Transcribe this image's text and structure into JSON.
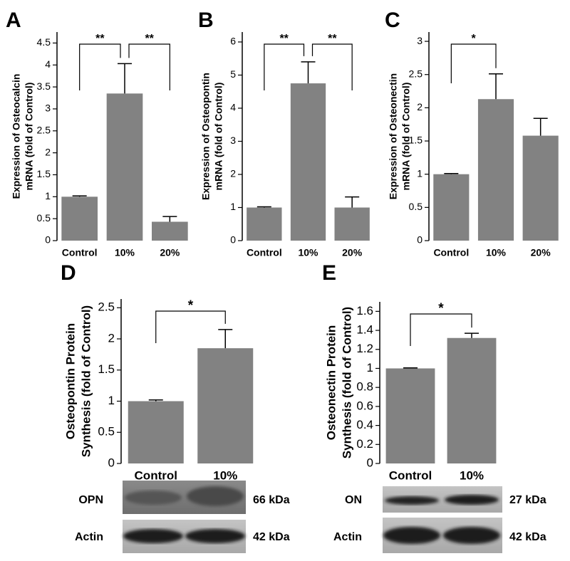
{
  "chart_data": [
    {
      "type": "bar",
      "panel": "A",
      "ylabel": [
        "Expression of Osteocalcin",
        "mRNA (fold of Control)"
      ],
      "categories": [
        "Control",
        "10%",
        "20%"
      ],
      "values": [
        1,
        3.35,
        0.43
      ],
      "errors": [
        0.02,
        0.68,
        0.12
      ],
      "color": "#828282",
      "ylim": [
        0,
        4.75
      ],
      "yticks": [
        0,
        0.5,
        1,
        1.5,
        2,
        2.5,
        3,
        3.5,
        4,
        4.5
      ],
      "annotations": [
        {
          "text": "**",
          "categories": [
            "Control",
            "10%"
          ]
        },
        {
          "text": "**",
          "categories": [
            "10%",
            "20%"
          ]
        }
      ]
    },
    {
      "type": "bar",
      "panel": "B",
      "ylabel": [
        "Expression of Osteopontin",
        "mRNA (fold of Control)"
      ],
      "categories": [
        "Control",
        "10%",
        "20%"
      ],
      "values": [
        1,
        4.75,
        1
      ],
      "errors": [
        0.02,
        0.65,
        0.32
      ],
      "color": "#828282",
      "ylim": [
        0,
        6.3
      ],
      "yticks": [
        0,
        1,
        2,
        3,
        4,
        5,
        6
      ],
      "annotations": [
        {
          "text": "**",
          "categories": [
            "Control",
            "10%"
          ]
        },
        {
          "text": "**",
          "categories": [
            "10%",
            "20%"
          ]
        }
      ]
    },
    {
      "type": "bar",
      "panel": "C",
      "ylabel": [
        "Expression of Osteonectin",
        "mRNA (fold of Control)"
      ],
      "categories": [
        "Control",
        "10%",
        "20%"
      ],
      "values": [
        1,
        2.13,
        1.58
      ],
      "errors": [
        0.01,
        0.38,
        0.26
      ],
      "color": "#828282",
      "ylim": [
        0,
        3.14
      ],
      "yticks": [
        0,
        0.5,
        1,
        1.5,
        2,
        2.5,
        3
      ],
      "annotations": [
        {
          "text": "*",
          "categories": [
            "Control",
            "10%"
          ]
        }
      ]
    },
    {
      "type": "bar",
      "panel": "D",
      "ylabel": [
        "Osteopontin Protein",
        "Synthesis (fold of Control)"
      ],
      "categories": [
        "Control",
        "10%"
      ],
      "values": [
        1,
        1.85
      ],
      "errors": [
        0.02,
        0.3
      ],
      "color": "#828282",
      "ylim": [
        0,
        2.64
      ],
      "yticks": [
        0,
        0.5,
        1,
        1.5,
        2,
        2.5
      ],
      "annotations": [
        {
          "text": "*",
          "categories": [
            "Control",
            "10%"
          ]
        }
      ]
    },
    {
      "type": "bar",
      "panel": "E",
      "ylabel": [
        "Osteonectin Protein",
        "Synthesis (fold of Control)"
      ],
      "categories": [
        "Control",
        "10%"
      ],
      "values": [
        1,
        1.32
      ],
      "errors": [
        0.005,
        0.05
      ],
      "color": "#828282",
      "ylim": [
        0,
        1.7
      ],
      "yticks": [
        0,
        0.2,
        0.4,
        0.6,
        0.8,
        1,
        1.2,
        1.4,
        1.6
      ],
      "annotations": [
        {
          "text": "*",
          "categories": [
            "Control",
            "10%"
          ]
        }
      ]
    }
  ],
  "blots": [
    {
      "rows": [
        {
          "label": "OPN",
          "size": "66 kDa"
        },
        {
          "label": "Actin",
          "size": "42 kDa"
        }
      ]
    },
    {
      "rows": [
        {
          "label": "ON",
          "size": "27 kDa"
        },
        {
          "label": "Actin",
          "size": "42 kDa"
        }
      ]
    }
  ]
}
